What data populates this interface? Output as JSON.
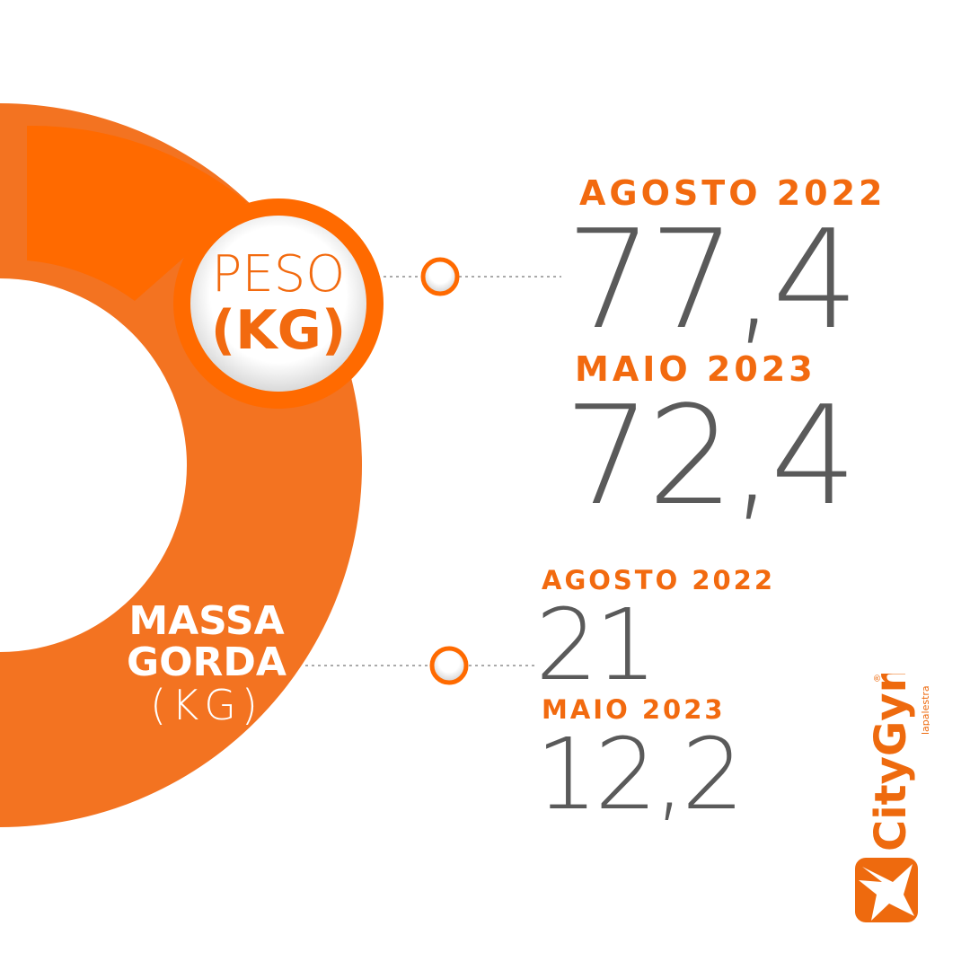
{
  "colors": {
    "ring": "#F37321",
    "ring_band": "#FF6A00",
    "label": "#F26A0F",
    "value": "#5a5a5a"
  },
  "peso": {
    "title_line1": "PESO",
    "title_line2": "(KG)",
    "entries": [
      {
        "period": "AGOSTO 2022",
        "value": "77,4"
      },
      {
        "period": "MAIO 2023",
        "value": "72,4"
      }
    ]
  },
  "massa_gorda": {
    "title_line1": "MASSA",
    "title_line2": "GORDA",
    "title_line3": "(KG)",
    "entries": [
      {
        "period": "AGOSTO 2022",
        "value": "21"
      },
      {
        "period": "MAIO 2023",
        "value": "12,2"
      }
    ]
  },
  "logo": {
    "text": "CityGym",
    "subtext": "lapalestra",
    "mark": "®",
    "icon": "star-icon"
  }
}
